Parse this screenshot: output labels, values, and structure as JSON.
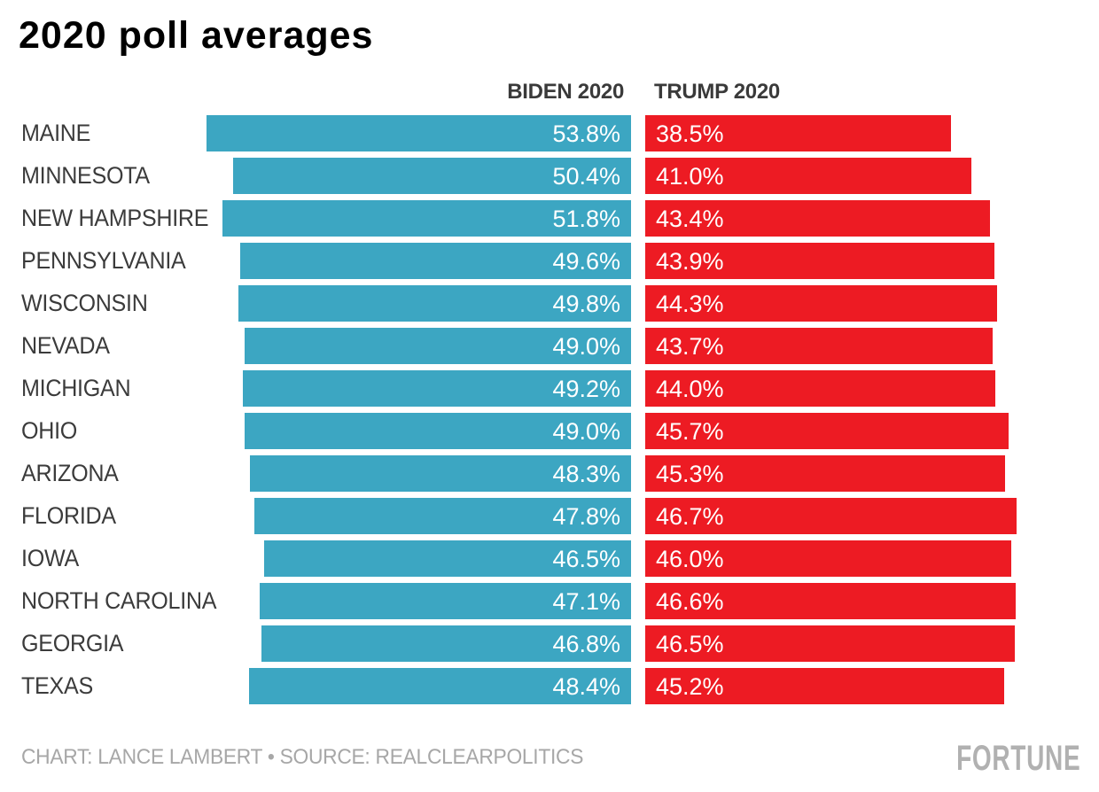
{
  "title": "2020 poll averages",
  "column_headers": {
    "biden": "BIDEN 2020",
    "trump": "TRUMP 2020"
  },
  "footer": {
    "credit": "CHART: LANCE LAMBERT • SOURCE: REALCLEARPOLITICS",
    "brand": "FORTUNE"
  },
  "colors": {
    "biden_bar": "#3CA6C2",
    "trump_bar": "#ED1B23",
    "title_text": "#000000",
    "state_label_text": "#3B3B3B",
    "header_text": "#3A3A3A",
    "value_label_text": "#FFFFFF",
    "credit_text": "#A7A7A7",
    "brand_text": "#B1B1B1",
    "background": "#FFFFFF"
  },
  "chart_data": {
    "type": "bar",
    "orientation": "horizontal",
    "title": "2020 poll averages",
    "categories": [
      "MAINE",
      "MINNESOTA",
      "NEW HAMPSHIRE",
      "PENNSYLVANIA",
      "WISCONSIN",
      "NEVADA",
      "MICHIGAN",
      "OHIO",
      "ARIZONA",
      "FLORIDA",
      "IOWA",
      "NORTH CAROLINA",
      "GEORGIA",
      "TEXAS"
    ],
    "series": [
      {
        "name": "BIDEN 2020",
        "color": "#3CA6C2",
        "values": [
          53.8,
          50.4,
          51.8,
          49.6,
          49.8,
          49.0,
          49.2,
          49.0,
          48.3,
          47.8,
          46.5,
          47.1,
          46.8,
          48.4
        ],
        "labels": [
          "53.8%",
          "50.4%",
          "51.8%",
          "49.6%",
          "49.8%",
          "49.0%",
          "49.2%",
          "49.0%",
          "48.3%",
          "47.8%",
          "46.5%",
          "47.1%",
          "46.8%",
          "48.4%"
        ]
      },
      {
        "name": "TRUMP 2020",
        "color": "#ED1B23",
        "values": [
          38.5,
          41.0,
          43.4,
          43.9,
          44.3,
          43.7,
          44.0,
          45.7,
          45.3,
          46.7,
          46.0,
          46.6,
          46.5,
          45.2
        ],
        "labels": [
          "38.5%",
          "41.0%",
          "43.4%",
          "43.9%",
          "44.3%",
          "43.7%",
          "44.0%",
          "45.7%",
          "45.3%",
          "46.7%",
          "46.0%",
          "46.6%",
          "46.5%",
          "45.2%"
        ]
      }
    ],
    "value_unit": "%",
    "xlim": [
      0,
      56
    ],
    "grid": false,
    "legend": "series names shown as column headers above bar groups",
    "value_labels": "inside bars (Biden right-aligned, Trump left-aligned)"
  }
}
